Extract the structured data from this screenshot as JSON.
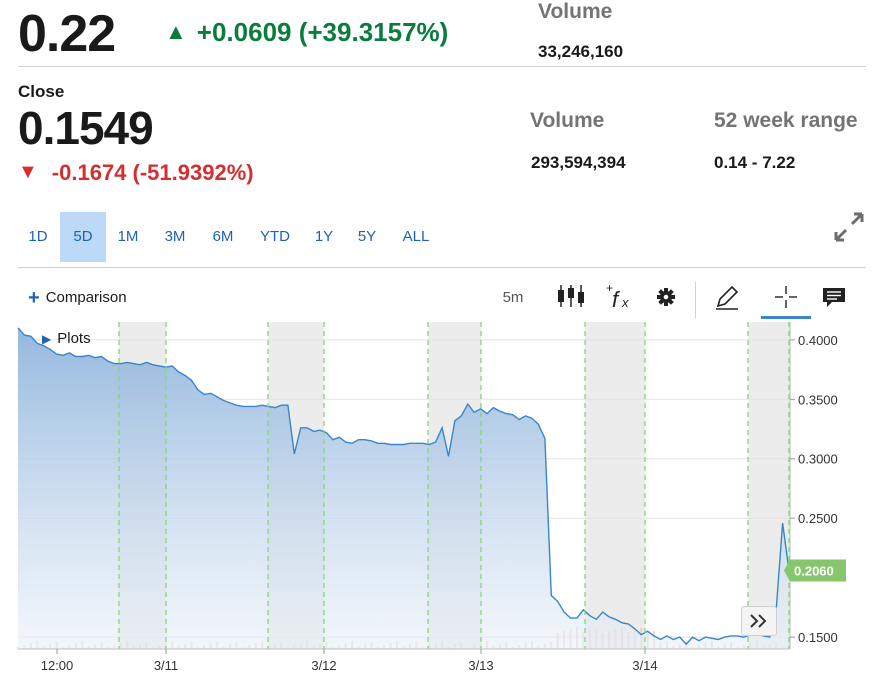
{
  "header": {
    "last_price": "0.22",
    "change": "+0.0609 (+39.3157%)",
    "volume_label": "Volume",
    "volume_value": "33,246,160"
  },
  "close_block": {
    "label": "Close",
    "price": "0.1549",
    "change": "-0.1674 (-51.9392%)",
    "volume_label": "Volume",
    "volume_value": "293,594,394",
    "range_label": "52 week range",
    "range_value": "0.14 - 7.22"
  },
  "ranges": [
    "1D",
    "5D",
    "1M",
    "3M",
    "6M",
    "YTD",
    "1Y",
    "5Y",
    "ALL"
  ],
  "active_range": "5D",
  "toolbar": {
    "comparison_label": "Comparison",
    "interval_label": "5m",
    "plots_label": "Plots"
  },
  "colors": {
    "up": "#0a7d3e",
    "down": "#d32f2f",
    "accent": "#1e62b4",
    "line": "#3a86c8",
    "session_divider": "#7ddc6e",
    "last_price_badge": "#86c66d"
  },
  "icons": [
    "expand-icon",
    "candlestick-icon",
    "function-icon",
    "gear-icon",
    "pencil-icon",
    "crosshair-icon",
    "comment-icon",
    "fast-forward-icon"
  ],
  "chart_data": {
    "type": "area",
    "x_tick_labels": [
      "12:00",
      "3/11",
      "3/12",
      "3/13",
      "3/14"
    ],
    "y_tick_labels": [
      "0.4000",
      "0.3500",
      "0.3000",
      "0.2500",
      "0.1500"
    ],
    "y_ticks": [
      0.4,
      0.35,
      0.3,
      0.25,
      0.15
    ],
    "ylim": [
      0.14,
      0.415
    ],
    "last_value_label": "0.2060",
    "last_value": 0.206,
    "series": [
      {
        "values": [
          0.41,
          0.404,
          0.403,
          0.397,
          0.395,
          0.392,
          0.388,
          0.387,
          0.389,
          0.386,
          0.386,
          0.387,
          0.385,
          0.386,
          0.382,
          0.38,
          0.38,
          0.381,
          0.38,
          0.379,
          0.381,
          0.379,
          0.378,
          0.377,
          0.378,
          0.373,
          0.37,
          0.366,
          0.358,
          0.354,
          0.355,
          0.352,
          0.349,
          0.347,
          0.345,
          0.344,
          0.344,
          0.344,
          0.345,
          0.344,
          0.343,
          0.345,
          0.345,
          0.304,
          0.326,
          0.326,
          0.323,
          0.324,
          0.322,
          0.316,
          0.318,
          0.314,
          0.313,
          0.316,
          0.316,
          0.315,
          0.313,
          0.313,
          0.312,
          0.312,
          0.312,
          0.313,
          0.313,
          0.313,
          0.312,
          0.314,
          0.326,
          0.302,
          0.332,
          0.336,
          0.346,
          0.339,
          0.342,
          0.338,
          0.343,
          0.34,
          0.338,
          0.337,
          0.333,
          0.336,
          0.334,
          0.329,
          0.317,
          0.185,
          0.18,
          0.171,
          0.166,
          0.166,
          0.173,
          0.168,
          0.165,
          0.171,
          0.167,
          0.165,
          0.162,
          0.161,
          0.157,
          0.152,
          0.155,
          0.151,
          0.148,
          0.151,
          0.148,
          0.15,
          0.144,
          0.15,
          0.147,
          0.15,
          0.149,
          0.148,
          0.15,
          0.151,
          0.151,
          0.15,
          0.152,
          0.153,
          0.151,
          0.15,
          0.172,
          0.246,
          0.206
        ]
      }
    ]
  }
}
